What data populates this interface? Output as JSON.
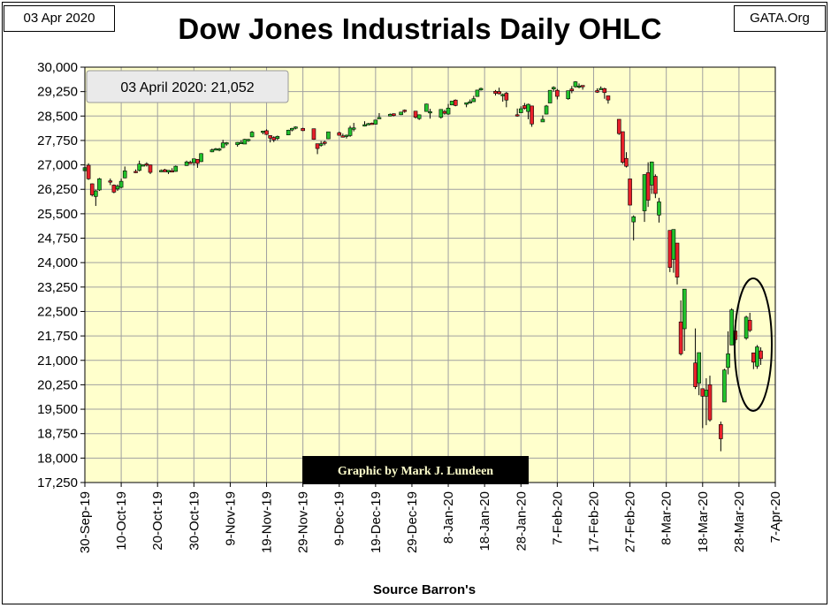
{
  "header": {
    "date_label": "03 Apr 2020",
    "site_label": "GATA.Org",
    "title": "Dow Jones Industrials Daily OHLC"
  },
  "footer": {
    "source": "Source Barron's"
  },
  "colors": {
    "up": "#22c22b",
    "down": "#e8202a",
    "plot_bg": "#ffffcc",
    "grid": "#a0a0a0",
    "credit_bg": "#000000",
    "credit_text": "#ffffcc"
  },
  "chart_data": {
    "type": "ohlc",
    "title": "Dow Jones Industrials Daily OHLC",
    "xlabel": "Source Barron's",
    "ylabel": "",
    "ylim": [
      17250,
      30000
    ],
    "y_ticks": [
      "17,250",
      "18,000",
      "18,750",
      "19,500",
      "20,250",
      "21,000",
      "21,750",
      "22,500",
      "23,250",
      "24,000",
      "24,750",
      "25,500",
      "26,250",
      "27,000",
      "27,750",
      "28,500",
      "29,250",
      "30,000"
    ],
    "x_ticks": [
      "30-Sep-19",
      "10-Oct-19",
      "20-Oct-19",
      "30-Oct-19",
      "9-Nov-19",
      "19-Nov-19",
      "29-Nov-19",
      "9-Dec-19",
      "19-Dec-19",
      "29-Dec-19",
      "8-Jan-20",
      "18-Jan-20",
      "28-Jan-20",
      "7-Feb-20",
      "17-Feb-20",
      "27-Feb-20",
      "8-Mar-20",
      "18-Mar-20",
      "28-Mar-20",
      "7-Apr-20"
    ],
    "grid": true,
    "last_value_label": "03 April 2020: 21,052",
    "credit": "Graphic by Mark J. Lundeen",
    "annotation": "ellipse around 24 Mar – 3 Apr 2020 closes",
    "series": [
      {
        "date": "2019-09-30",
        "open": 26820,
        "high": 26990,
        "low": 26780,
        "close": 26916
      },
      {
        "date": "2019-10-01",
        "open": 26990,
        "high": 27050,
        "low": 26540,
        "close": 26573
      },
      {
        "date": "2019-10-02",
        "open": 26420,
        "high": 26430,
        "low": 26030,
        "close": 26079
      },
      {
        "date": "2019-10-03",
        "open": 26030,
        "high": 26240,
        "low": 25740,
        "close": 26201
      },
      {
        "date": "2019-10-04",
        "open": 26230,
        "high": 26600,
        "low": 26200,
        "close": 26573
      },
      {
        "date": "2019-10-07",
        "open": 26510,
        "high": 26580,
        "low": 26380,
        "close": 26478
      },
      {
        "date": "2019-10-08",
        "open": 26380,
        "high": 26400,
        "low": 26130,
        "close": 26164
      },
      {
        "date": "2019-10-09",
        "open": 26260,
        "high": 26400,
        "low": 26200,
        "close": 26346
      },
      {
        "date": "2019-10-10",
        "open": 26310,
        "high": 26580,
        "low": 26280,
        "close": 26497
      },
      {
        "date": "2019-10-11",
        "open": 26600,
        "high": 26950,
        "low": 26590,
        "close": 26817
      },
      {
        "date": "2019-10-14",
        "open": 26800,
        "high": 26860,
        "low": 26750,
        "close": 26787
      },
      {
        "date": "2019-10-15",
        "open": 26830,
        "high": 27130,
        "low": 26800,
        "close": 27025
      },
      {
        "date": "2019-10-16",
        "open": 27000,
        "high": 27020,
        "low": 26960,
        "close": 27001
      },
      {
        "date": "2019-10-17",
        "open": 27030,
        "high": 27080,
        "low": 26950,
        "close": 27026
      },
      {
        "date": "2019-10-18",
        "open": 27000,
        "high": 27010,
        "low": 26720,
        "close": 26770
      },
      {
        "date": "2019-10-21",
        "open": 26800,
        "high": 26860,
        "low": 26780,
        "close": 26828
      },
      {
        "date": "2019-10-22",
        "open": 26850,
        "high": 26880,
        "low": 26780,
        "close": 26788
      },
      {
        "date": "2019-10-23",
        "open": 26780,
        "high": 26840,
        "low": 26720,
        "close": 26834
      },
      {
        "date": "2019-10-24",
        "open": 26820,
        "high": 26900,
        "low": 26770,
        "close": 26805
      },
      {
        "date": "2019-10-25",
        "open": 26800,
        "high": 26980,
        "low": 26790,
        "close": 26958
      },
      {
        "date": "2019-10-28",
        "open": 26980,
        "high": 27130,
        "low": 26970,
        "close": 27091
      },
      {
        "date": "2019-10-29",
        "open": 27080,
        "high": 27130,
        "low": 27040,
        "close": 27071
      },
      {
        "date": "2019-10-30",
        "open": 27070,
        "high": 27190,
        "low": 26980,
        "close": 27186
      },
      {
        "date": "2019-10-31",
        "open": 27170,
        "high": 27180,
        "low": 26910,
        "close": 27046
      },
      {
        "date": "2019-11-01",
        "open": 27100,
        "high": 27360,
        "low": 27090,
        "close": 27347
      },
      {
        "date": "2019-11-04",
        "open": 27400,
        "high": 27500,
        "low": 27390,
        "close": 27462
      },
      {
        "date": "2019-11-05",
        "open": 27460,
        "high": 27520,
        "low": 27450,
        "close": 27492
      },
      {
        "date": "2019-11-06",
        "open": 27470,
        "high": 27520,
        "low": 27420,
        "close": 27492
      },
      {
        "date": "2019-11-07",
        "open": 27530,
        "high": 27770,
        "low": 27520,
        "close": 27675
      },
      {
        "date": "2019-11-08",
        "open": 27650,
        "high": 27700,
        "low": 27590,
        "close": 27681
      },
      {
        "date": "2019-11-11",
        "open": 27620,
        "high": 27700,
        "low": 27560,
        "close": 27691
      },
      {
        "date": "2019-11-12",
        "open": 27690,
        "high": 27760,
        "low": 27640,
        "close": 27691
      },
      {
        "date": "2019-11-13",
        "open": 27640,
        "high": 27800,
        "low": 27640,
        "close": 27784
      },
      {
        "date": "2019-11-14",
        "open": 27770,
        "high": 27800,
        "low": 27710,
        "close": 27782
      },
      {
        "date": "2019-11-15",
        "open": 27860,
        "high": 28040,
        "low": 27850,
        "close": 28005
      },
      {
        "date": "2019-11-18",
        "open": 28000,
        "high": 28050,
        "low": 27940,
        "close": 28036
      },
      {
        "date": "2019-11-19",
        "open": 28050,
        "high": 28090,
        "low": 27920,
        "close": 27934
      },
      {
        "date": "2019-11-20",
        "open": 27900,
        "high": 27910,
        "low": 27690,
        "close": 27821
      },
      {
        "date": "2019-11-21",
        "open": 27840,
        "high": 27880,
        "low": 27700,
        "close": 27766
      },
      {
        "date": "2019-11-22",
        "open": 27810,
        "high": 27900,
        "low": 27760,
        "close": 27876
      },
      {
        "date": "2019-11-25",
        "open": 27920,
        "high": 28080,
        "low": 27910,
        "close": 28066
      },
      {
        "date": "2019-11-26",
        "open": 28070,
        "high": 28140,
        "low": 28030,
        "close": 28121
      },
      {
        "date": "2019-11-27",
        "open": 28140,
        "high": 28180,
        "low": 28090,
        "close": 28164
      },
      {
        "date": "2019-11-29",
        "open": 28120,
        "high": 28140,
        "low": 28040,
        "close": 28051
      },
      {
        "date": "2019-12-02",
        "open": 28110,
        "high": 28110,
        "low": 27770,
        "close": 27783
      },
      {
        "date": "2019-12-03",
        "open": 27650,
        "high": 27650,
        "low": 27330,
        "close": 27502
      },
      {
        "date": "2019-12-04",
        "open": 27600,
        "high": 27730,
        "low": 27560,
        "close": 27649
      },
      {
        "date": "2019-12-05",
        "open": 27700,
        "high": 27740,
        "low": 27600,
        "close": 27677
      },
      {
        "date": "2019-12-06",
        "open": 27800,
        "high": 28020,
        "low": 27790,
        "close": 28015
      },
      {
        "date": "2019-12-09",
        "open": 27990,
        "high": 28020,
        "low": 27900,
        "close": 27909
      },
      {
        "date": "2019-12-10",
        "open": 27890,
        "high": 27960,
        "low": 27850,
        "close": 27881
      },
      {
        "date": "2019-12-11",
        "open": 27880,
        "high": 27930,
        "low": 27810,
        "close": 27911
      },
      {
        "date": "2019-12-12",
        "open": 27900,
        "high": 28200,
        "low": 27860,
        "close": 28132
      },
      {
        "date": "2019-12-13",
        "open": 28120,
        "high": 28290,
        "low": 28030,
        "close": 28135
      },
      {
        "date": "2019-12-16",
        "open": 28190,
        "high": 28340,
        "low": 28180,
        "close": 28235
      },
      {
        "date": "2019-12-17",
        "open": 28260,
        "high": 28290,
        "low": 28230,
        "close": 28267
      },
      {
        "date": "2019-12-18",
        "open": 28280,
        "high": 28300,
        "low": 28230,
        "close": 28239
      },
      {
        "date": "2019-12-19",
        "open": 28250,
        "high": 28380,
        "low": 28240,
        "close": 28377
      },
      {
        "date": "2019-12-20",
        "open": 28420,
        "high": 28590,
        "low": 28410,
        "close": 28455
      },
      {
        "date": "2019-12-23",
        "open": 28500,
        "high": 28580,
        "low": 28490,
        "close": 28551
      },
      {
        "date": "2019-12-24",
        "open": 28570,
        "high": 28580,
        "low": 28490,
        "close": 28515
      },
      {
        "date": "2019-12-26",
        "open": 28540,
        "high": 28630,
        "low": 28530,
        "close": 28621
      },
      {
        "date": "2019-12-27",
        "open": 28680,
        "high": 28700,
        "low": 28600,
        "close": 28645
      },
      {
        "date": "2019-12-30",
        "open": 28650,
        "high": 28650,
        "low": 28420,
        "close": 28462
      },
      {
        "date": "2019-12-31",
        "open": 28420,
        "high": 28550,
        "low": 28380,
        "close": 28538
      },
      {
        "date": "2020-01-02",
        "open": 28640,
        "high": 28880,
        "low": 28640,
        "close": 28868
      },
      {
        "date": "2020-01-03",
        "open": 28630,
        "high": 28720,
        "low": 28420,
        "close": 28634
      },
      {
        "date": "2020-01-06",
        "open": 28460,
        "high": 28710,
        "low": 28420,
        "close": 28703
      },
      {
        "date": "2020-01-07",
        "open": 28640,
        "high": 28690,
        "low": 28540,
        "close": 28584
      },
      {
        "date": "2020-01-08",
        "open": 28560,
        "high": 28870,
        "low": 28540,
        "close": 28745
      },
      {
        "date": "2020-01-09",
        "open": 28840,
        "high": 28960,
        "low": 28830,
        "close": 28957
      },
      {
        "date": "2020-01-10",
        "open": 28990,
        "high": 29010,
        "low": 28800,
        "close": 28824
      },
      {
        "date": "2020-01-13",
        "open": 28860,
        "high": 28910,
        "low": 28770,
        "close": 28908
      },
      {
        "date": "2020-01-14",
        "open": 28900,
        "high": 29010,
        "low": 28880,
        "close": 28940
      },
      {
        "date": "2020-01-15",
        "open": 28940,
        "high": 29120,
        "low": 28930,
        "close": 29031
      },
      {
        "date": "2020-01-16",
        "open": 29100,
        "high": 29300,
        "low": 29090,
        "close": 29297
      },
      {
        "date": "2020-01-17",
        "open": 29300,
        "high": 29370,
        "low": 29280,
        "close": 29348
      },
      {
        "date": "2020-01-21",
        "open": 29260,
        "high": 29300,
        "low": 29130,
        "close": 29196
      },
      {
        "date": "2020-01-22",
        "open": 29250,
        "high": 29370,
        "low": 29160,
        "close": 29186
      },
      {
        "date": "2020-01-23",
        "open": 29130,
        "high": 29190,
        "low": 28940,
        "close": 29160
      },
      {
        "date": "2020-01-24",
        "open": 29200,
        "high": 29240,
        "low": 28770,
        "close": 28990
      },
      {
        "date": "2020-01-27",
        "open": 28540,
        "high": 28730,
        "low": 28480,
        "close": 28535
      },
      {
        "date": "2020-01-28",
        "open": 28600,
        "high": 28800,
        "low": 28600,
        "close": 28723
      },
      {
        "date": "2020-01-29",
        "open": 28820,
        "high": 28900,
        "low": 28700,
        "close": 28734
      },
      {
        "date": "2020-01-30",
        "open": 28640,
        "high": 28880,
        "low": 28400,
        "close": 28860
      },
      {
        "date": "2020-01-31",
        "open": 28810,
        "high": 28810,
        "low": 28170,
        "close": 28256
      },
      {
        "date": "2020-02-03",
        "open": 28320,
        "high": 28520,
        "low": 28320,
        "close": 28400
      },
      {
        "date": "2020-02-04",
        "open": 28560,
        "high": 28840,
        "low": 28550,
        "close": 28808
      },
      {
        "date": "2020-02-05",
        "open": 28900,
        "high": 29290,
        "low": 28900,
        "close": 29290
      },
      {
        "date": "2020-02-06",
        "open": 29330,
        "high": 29410,
        "low": 29250,
        "close": 29380
      },
      {
        "date": "2020-02-07",
        "open": 29290,
        "high": 29330,
        "low": 29010,
        "close": 29103
      },
      {
        "date": "2020-02-10",
        "open": 29030,
        "high": 29280,
        "low": 29000,
        "close": 29277
      },
      {
        "date": "2020-02-11",
        "open": 29330,
        "high": 29420,
        "low": 29200,
        "close": 29276
      },
      {
        "date": "2020-02-12",
        "open": 29400,
        "high": 29570,
        "low": 29370,
        "close": 29551
      },
      {
        "date": "2020-02-13",
        "open": 29420,
        "high": 29500,
        "low": 29350,
        "close": 29423
      },
      {
        "date": "2020-02-14",
        "open": 29440,
        "high": 29440,
        "low": 29310,
        "close": 29398
      },
      {
        "date": "2020-02-18",
        "open": 29280,
        "high": 29350,
        "low": 29210,
        "close": 29232
      },
      {
        "date": "2020-02-19",
        "open": 29330,
        "high": 29410,
        "low": 29320,
        "close": 29348
      },
      {
        "date": "2020-02-20",
        "open": 29340,
        "high": 29370,
        "low": 29030,
        "close": 29219
      },
      {
        "date": "2020-02-21",
        "open": 29120,
        "high": 29120,
        "low": 28880,
        "close": 28992
      },
      {
        "date": "2020-02-24",
        "open": 28400,
        "high": 28400,
        "low": 27920,
        "close": 27961
      },
      {
        "date": "2020-02-25",
        "open": 28020,
        "high": 28020,
        "low": 27030,
        "close": 27081
      },
      {
        "date": "2020-02-26",
        "open": 27200,
        "high": 27390,
        "low": 26920,
        "close": 26957
      },
      {
        "date": "2020-02-27",
        "open": 26570,
        "high": 26570,
        "low": 25760,
        "close": 25766
      },
      {
        "date": "2020-02-28",
        "open": 25250,
        "high": 25450,
        "low": 24680,
        "close": 25409
      },
      {
        "date": "2020-03-02",
        "open": 25590,
        "high": 26710,
        "low": 25250,
        "close": 26703
      },
      {
        "date": "2020-03-03",
        "open": 26760,
        "high": 27080,
        "low": 25710,
        "close": 25917
      },
      {
        "date": "2020-03-04",
        "open": 26380,
        "high": 27100,
        "low": 26110,
        "close": 27091
      },
      {
        "date": "2020-03-05",
        "open": 26650,
        "high": 26710,
        "low": 25980,
        "close": 26121
      },
      {
        "date": "2020-03-06",
        "open": 25460,
        "high": 25990,
        "low": 25230,
        "close": 25865
      },
      {
        "date": "2020-03-09",
        "open": 24990,
        "high": 24990,
        "low": 23710,
        "close": 23851
      },
      {
        "date": "2020-03-10",
        "open": 24100,
        "high": 25020,
        "low": 23690,
        "close": 25018
      },
      {
        "date": "2020-03-11",
        "open": 24600,
        "high": 24600,
        "low": 23330,
        "close": 23553
      },
      {
        "date": "2020-03-12",
        "open": 22180,
        "high": 22840,
        "low": 21150,
        "close": 21200
      },
      {
        "date": "2020-03-13",
        "open": 21970,
        "high": 23190,
        "low": 21290,
        "close": 23186
      },
      {
        "date": "2020-03-16",
        "open": 20920,
        "high": 21980,
        "low": 20120,
        "close": 20189
      },
      {
        "date": "2020-03-17",
        "open": 20300,
        "high": 21240,
        "low": 19930,
        "close": 21237
      },
      {
        "date": "2020-03-18",
        "open": 20130,
        "high": 20130,
        "low": 18920,
        "close": 19899
      },
      {
        "date": "2020-03-19",
        "open": 19900,
        "high": 20450,
        "low": 19010,
        "close": 20087
      },
      {
        "date": "2020-03-20",
        "open": 20250,
        "high": 20530,
        "low": 19120,
        "close": 19174
      },
      {
        "date": "2020-03-23",
        "open": 19030,
        "high": 19120,
        "low": 18210,
        "close": 18592
      },
      {
        "date": "2020-03-24",
        "open": 19720,
        "high": 20740,
        "low": 19720,
        "close": 20704
      },
      {
        "date": "2020-03-25",
        "open": 20780,
        "high": 21890,
        "low": 20570,
        "close": 21200
      },
      {
        "date": "2020-03-26",
        "open": 21470,
        "high": 22600,
        "low": 21470,
        "close": 22552
      },
      {
        "date": "2020-03-27",
        "open": 21900,
        "high": 22250,
        "low": 21520,
        "close": 21637
      },
      {
        "date": "2020-03-30",
        "open": 21680,
        "high": 22370,
        "low": 21630,
        "close": 22327
      },
      {
        "date": "2020-03-31",
        "open": 22230,
        "high": 22460,
        "low": 21870,
        "close": 21917
      },
      {
        "date": "2020-04-01",
        "open": 21230,
        "high": 21230,
        "low": 20730,
        "close": 20944
      },
      {
        "date": "2020-04-02",
        "open": 20820,
        "high": 21470,
        "low": 20740,
        "close": 21413
      },
      {
        "date": "2020-04-03",
        "open": 21290,
        "high": 21400,
        "low": 20860,
        "close": 21052
      }
    ]
  }
}
